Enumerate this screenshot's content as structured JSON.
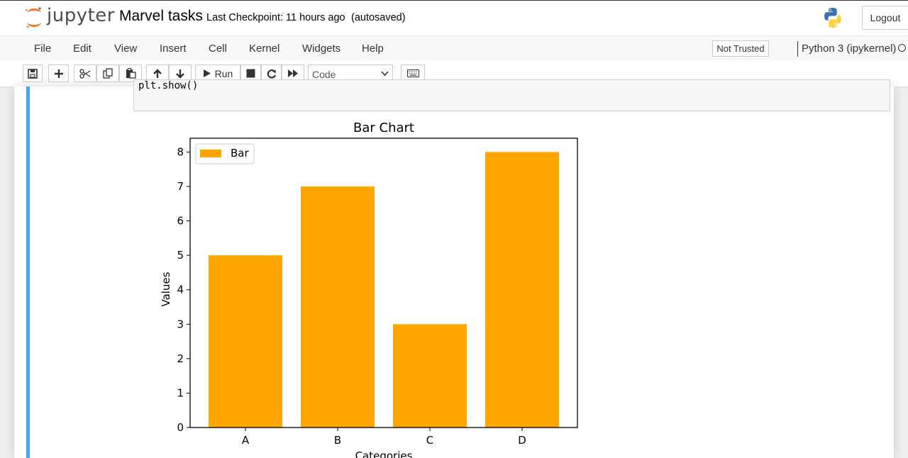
{
  "header": {
    "logo_text": "jupyter",
    "notebook_title": "Marvel tasks",
    "checkpoint": "Last Checkpoint: 11 hours ago",
    "autosave_status": "(autosaved)",
    "logout_label": "Logout"
  },
  "menu": {
    "items": [
      "File",
      "Edit",
      "View",
      "Insert",
      "Cell",
      "Kernel",
      "Widgets",
      "Help"
    ],
    "trust_label": "Not Trusted",
    "kernel_name": "Python 3 (ipykernel)"
  },
  "toolbar": {
    "run_label": "Run",
    "cell_type": "Code",
    "icons": [
      "save-icon",
      "plus-icon",
      "cut-icon",
      "copy-icon",
      "paste-icon",
      "arrow-up-icon",
      "arrow-down-icon",
      "play-icon",
      "stop-icon",
      "restart-icon",
      "fast-forward-icon",
      "keyboard-icon"
    ]
  },
  "cell": {
    "code_partial": "plt.show()"
  },
  "chart_data": {
    "type": "bar",
    "title": "Bar Chart",
    "xlabel": "Categories",
    "ylabel": "Values",
    "categories": [
      "A",
      "B",
      "C",
      "D"
    ],
    "series": [
      {
        "name": "Bar",
        "values": [
          5,
          7,
          3,
          8
        ]
      }
    ],
    "yticks": [
      0,
      1,
      2,
      3,
      4,
      5,
      6,
      7,
      8
    ],
    "ylim": [
      0,
      8.4
    ],
    "color": "#ffa500",
    "legend_position": "upper-left",
    "grid": false
  }
}
